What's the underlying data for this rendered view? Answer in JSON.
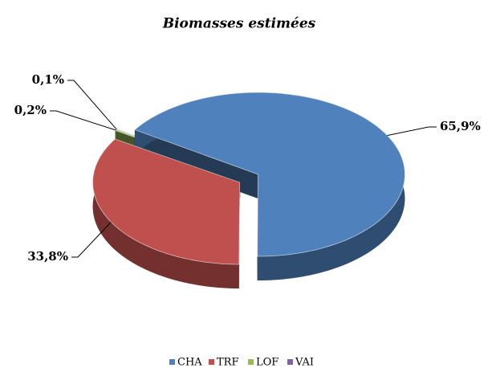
{
  "chart_data": {
    "type": "pie",
    "title": "Biomasses estimées",
    "categories": [
      "CHA",
      "TRF",
      "LOF",
      "VAI"
    ],
    "values": [
      65.9,
      33.8,
      0.2,
      0.1
    ],
    "value_labels": [
      "65,9%",
      "33,8%",
      "0,2%",
      "0,1%"
    ],
    "colors": [
      "#4f81bd",
      "#c0504d",
      "#9bbb59",
      "#8064a2"
    ],
    "legend": "bottom"
  }
}
